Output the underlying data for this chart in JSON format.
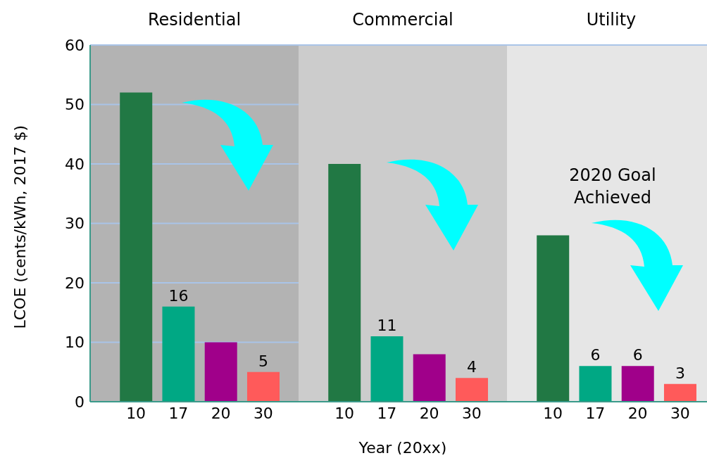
{
  "chart_data": [
    {
      "type": "bar",
      "title": "Residential",
      "ylabel": "LCOE (cents/kWh, 2017 $)",
      "categories": [
        "10",
        "17",
        "20",
        "30"
      ],
      "values": [
        52,
        16,
        10,
        5
      ],
      "colors": [
        "#217844",
        "#00a884",
        "#a0008a",
        "#ff5a5a"
      ],
      "value_labels": [
        null,
        "16",
        null,
        "5"
      ],
      "ylim": [
        0,
        60
      ],
      "yticks": [
        0,
        10,
        20,
        30,
        40,
        50,
        60
      ],
      "grid": "y",
      "bands": [
        {
          "axis": "y",
          "from": 0,
          "to": 60,
          "color": "#b3b3b3"
        }
      ]
    },
    {
      "type": "bar",
      "title": "Commercial",
      "xlabel": "Year (20xx)",
      "categories": [
        "10",
        "17",
        "20",
        "30"
      ],
      "values": [
        40,
        11,
        8,
        4
      ],
      "colors": [
        "#217844",
        "#00a884",
        "#a0008a",
        "#ff5a5a"
      ],
      "value_labels": [
        null,
        "11",
        null,
        "4"
      ],
      "ylim": [
        0,
        60
      ],
      "yticks": [
        0,
        10,
        20,
        30,
        40,
        50,
        60
      ],
      "tick_labels": "x",
      "grid": "y",
      "bands": [
        {
          "axis": "y",
          "from": 0,
          "to": 60,
          "color": "#cccccc"
        }
      ]
    },
    {
      "type": "bar",
      "title": "Utility",
      "categories": [
        "10",
        "17",
        "20",
        "30"
      ],
      "values": [
        28,
        6,
        6,
        3
      ],
      "colors": [
        "#217844",
        "#00a884",
        "#a0008a",
        "#ff5a5a"
      ],
      "value_labels": [
        null,
        "6",
        "6",
        "3"
      ],
      "ylim": [
        0,
        60
      ],
      "yticks": [
        0,
        10,
        20,
        30,
        40,
        50,
        60
      ],
      "tick_labels": "x",
      "grid": "y",
      "bands": [
        {
          "axis": "y",
          "from": 0,
          "to": 60,
          "color": "#e6e6e6"
        }
      ],
      "annotations": [
        "2020 Goal Achieved"
      ]
    }
  ]
}
